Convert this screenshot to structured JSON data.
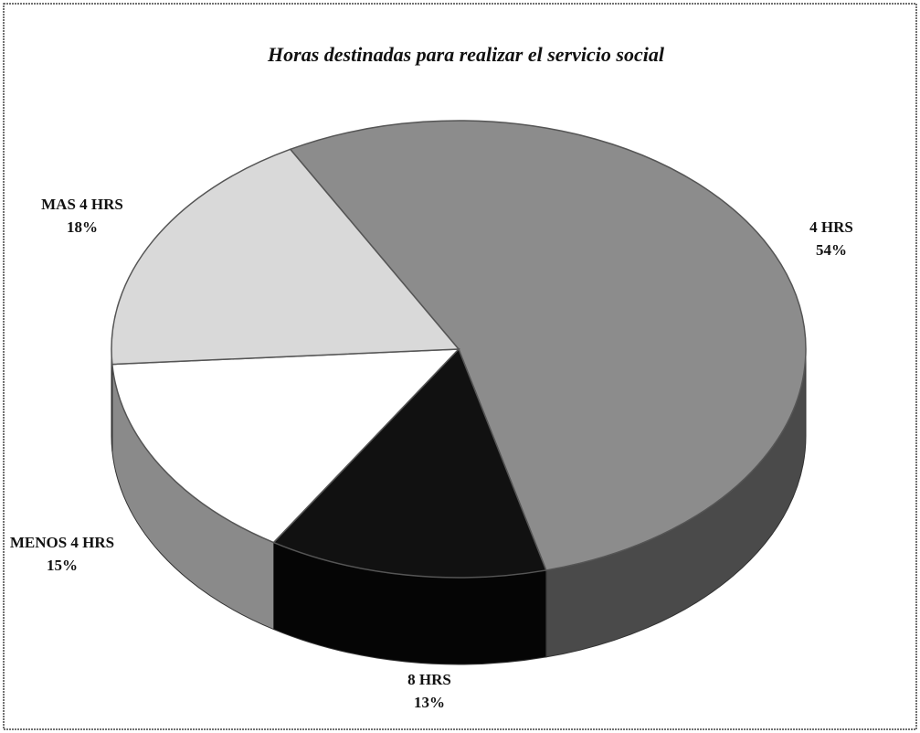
{
  "chart_data": {
    "type": "pie",
    "title": "Horas destinadas para realizar el servicio social",
    "categories": [
      "4 HRS",
      "8 HRS",
      "MENOS 4 HRS",
      "MAS 4 HRS"
    ],
    "values": [
      54,
      13,
      15,
      18
    ],
    "value_labels": [
      "54%",
      "13%",
      "15%",
      "18%"
    ],
    "colors": [
      "#8c8c8c",
      "#111111",
      "#ffffff",
      "#d9d9d9"
    ],
    "side_colors": [
      "#4a4a4a",
      "#050505",
      "#8a8a8a",
      "#9a9a9a"
    ]
  }
}
